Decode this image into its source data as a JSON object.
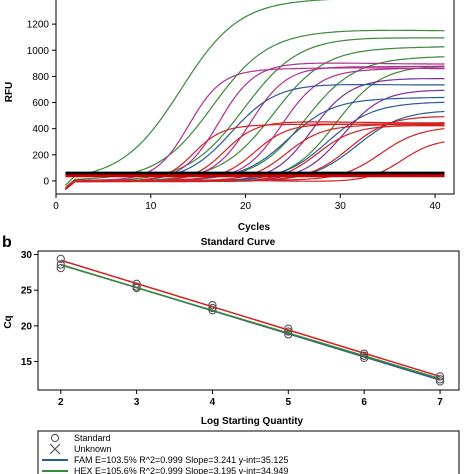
{
  "panel_b_label": "b",
  "chart_data": [
    {
      "type": "line",
      "title": "",
      "xlabel": "Cycles",
      "ylabel": "RFU",
      "xlim": [
        0,
        42
      ],
      "ylim": [
        -100,
        1400
      ],
      "xticks": [
        0,
        10,
        20,
        30,
        40
      ],
      "yticks": [
        0,
        200,
        400,
        600,
        800,
        1000,
        1200
      ],
      "grid": false,
      "threshold_lines": [
        {
          "y": 60,
          "color": "#000000"
        },
        {
          "y": 40,
          "color": "#cc0000"
        }
      ],
      "series": [
        {
          "color": "#3a8a3a",
          "ct": 13.2,
          "plateau": 1400,
          "k": 0.17
        },
        {
          "color": "#3a8a3a",
          "ct": 16.5,
          "plateau": 1150,
          "k": 0.18
        },
        {
          "color": "#3a8a3a",
          "ct": 19.8,
          "plateau": 1100,
          "k": 0.18
        },
        {
          "color": "#3a8a3a",
          "ct": 23.0,
          "plateau": 1030,
          "k": 0.19
        },
        {
          "color": "#3a8a3a",
          "ct": 26.3,
          "plateau": 950,
          "k": 0.2
        },
        {
          "color": "#3a8a3a",
          "ct": 29.5,
          "plateau": 880,
          "k": 0.22
        },
        {
          "color": "#b03090",
          "ct": 14.0,
          "plateau": 860,
          "k": 0.3
        },
        {
          "color": "#b03090",
          "ct": 17.2,
          "plateau": 900,
          "k": 0.28
        },
        {
          "color": "#b03090",
          "ct": 20.5,
          "plateau": 880,
          "k": 0.27
        },
        {
          "color": "#b03090",
          "ct": 23.8,
          "plateau": 860,
          "k": 0.26
        },
        {
          "color": "#7b2fa0",
          "ct": 27.0,
          "plateau": 780,
          "k": 0.26
        },
        {
          "color": "#7b2fa0",
          "ct": 30.3,
          "plateau": 700,
          "k": 0.25
        },
        {
          "color": "#2a5a9a",
          "ct": 18.5,
          "plateau": 740,
          "k": 0.22
        },
        {
          "color": "#2a5a9a",
          "ct": 24.5,
          "plateau": 640,
          "k": 0.22
        },
        {
          "color": "#2a5a9a",
          "ct": 28.6,
          "plateau": 600,
          "k": 0.22
        },
        {
          "color": "#2a5a9a",
          "ct": 31.8,
          "plateau": 540,
          "k": 0.22
        },
        {
          "color": "#d42020",
          "ct": 14.5,
          "plateau": 430,
          "k": 0.35
        },
        {
          "color": "#d42020",
          "ct": 17.8,
          "plateau": 450,
          "k": 0.32
        },
        {
          "color": "#d42020",
          "ct": 21.0,
          "plateau": 440,
          "k": 0.3
        },
        {
          "color": "#d42020",
          "ct": 24.3,
          "plateau": 430,
          "k": 0.28
        },
        {
          "color": "#d42020",
          "ct": 27.6,
          "plateau": 420,
          "k": 0.27
        },
        {
          "color": "#d42020",
          "ct": 31.0,
          "plateau": 500,
          "k": 0.25
        },
        {
          "color": "#d42020",
          "ct": 34.2,
          "plateau": 420,
          "k": 0.25
        },
        {
          "color": "#d42020",
          "ct": 36.5,
          "plateau": 320,
          "k": 0.3
        }
      ]
    },
    {
      "type": "scatter",
      "title": "Standard Curve",
      "xlabel": "Log Starting Quantity",
      "ylabel": "Cq",
      "xlim": [
        1.7,
        7.25
      ],
      "ylim": [
        11,
        30.5
      ],
      "xticks": [
        2,
        3,
        4,
        5,
        6,
        7
      ],
      "yticks": [
        15,
        20,
        25,
        30
      ],
      "grid": false,
      "legend_placement": "bottom",
      "legend": [
        {
          "symbol": "circle",
          "label": "Standard"
        },
        {
          "symbol": "cross",
          "label": "Unknown"
        },
        {
          "symbol": "line",
          "color": "#2a5a9a",
          "label": "FAM   E=103.5% R^2=0.999 Slope=3.241 y-int=35.125"
        },
        {
          "symbol": "line",
          "color": "#3a8a3a",
          "label": "HEX   E=105.6% R^2=0.999 Slope=3.195 y-int=34.949"
        }
      ],
      "series": [
        {
          "name": "FAM",
          "color": "#2a5a9a",
          "line": [
            [
              2,
              28.6
            ],
            [
              7,
              12.4
            ]
          ],
          "points": [
            [
              2,
              28.1
            ],
            [
              3,
              25.3
            ],
            [
              4,
              22.2
            ],
            [
              5,
              18.8
            ],
            [
              6,
              15.5
            ],
            [
              7,
              12.2
            ]
          ]
        },
        {
          "name": "HEX",
          "color": "#3a8a3a",
          "line": [
            [
              2,
              28.55
            ],
            [
              7,
              12.6
            ]
          ],
          "points": [
            [
              2,
              28.6
            ],
            [
              3,
              25.5
            ],
            [
              4,
              22.5
            ],
            [
              5,
              19.2
            ],
            [
              6,
              15.8
            ],
            [
              7,
              12.5
            ]
          ]
        },
        {
          "name": "",
          "color": "#d42020",
          "line": [
            [
              2,
              29.2
            ],
            [
              7,
              12.9
            ]
          ],
          "points": [
            [
              2,
              29.4
            ],
            [
              3,
              25.9
            ],
            [
              4,
              22.9
            ],
            [
              5,
              19.6
            ],
            [
              6,
              16.1
            ],
            [
              7,
              12.9
            ]
          ]
        }
      ]
    }
  ]
}
